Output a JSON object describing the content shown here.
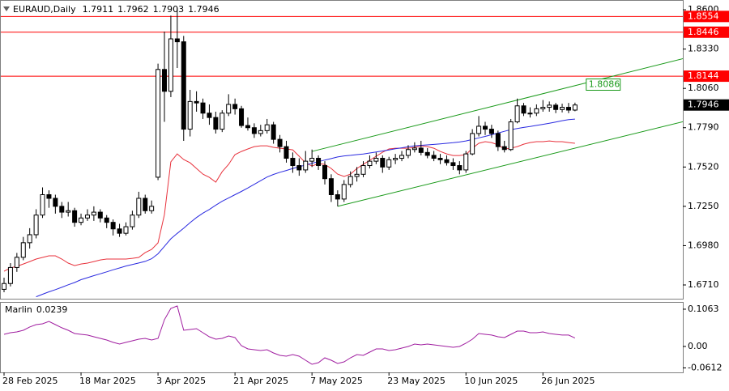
{
  "chart_data": {
    "type": "candlestick",
    "title": "EURAUD,Daily",
    "up_color": "#ffffff",
    "down_color": "#000000",
    "categories": [
      "28 Feb 2025",
      null,
      null,
      null,
      null,
      null,
      null,
      null,
      null,
      null,
      null,
      null,
      "18 Mar 2025",
      null,
      null,
      null,
      null,
      null,
      null,
      null,
      null,
      null,
      null,
      null,
      "3 Apr 2025",
      null,
      null,
      null,
      null,
      null,
      null,
      null,
      null,
      null,
      null,
      null,
      "21 Apr 2025",
      null,
      null,
      null,
      null,
      null,
      null,
      null,
      null,
      null,
      null,
      null,
      "7 May 2025",
      null,
      null,
      null,
      null,
      null,
      null,
      null,
      null,
      null,
      null,
      null,
      "23 May 2025",
      null,
      null,
      null,
      null,
      null,
      null,
      null,
      null,
      null,
      null,
      null,
      "10 Jun 2025",
      null,
      null,
      null,
      null,
      null,
      null,
      null,
      null,
      null,
      null,
      null,
      "26 Jun 2025",
      null,
      null,
      null,
      null,
      null
    ],
    "open": [
      1.668,
      1.672,
      1.683,
      1.69,
      1.7,
      1.7055,
      1.719,
      1.733,
      1.7305,
      1.725,
      1.721,
      1.722,
      1.714,
      1.717,
      1.719,
      1.721,
      1.717,
      1.714,
      1.7095,
      1.7065,
      1.711,
      1.719,
      1.7305,
      1.722,
      1.745,
      1.819,
      1.804,
      1.84,
      1.838,
      1.778,
      1.797,
      1.796,
      1.789,
      1.786,
      1.778,
      1.789,
      1.795,
      1.792,
      1.7805,
      1.779,
      1.775,
      1.777,
      1.781,
      1.771,
      1.766,
      1.758,
      1.753,
      1.75,
      1.756,
      1.758,
      1.753,
      1.744,
      1.733,
      1.73,
      1.74,
      1.7455,
      1.747,
      1.753,
      1.756,
      1.758,
      1.752,
      1.757,
      1.758,
      1.76,
      1.764,
      1.765,
      1.762,
      1.76,
      1.758,
      1.757,
      1.755,
      1.753,
      1.75,
      1.761,
      1.775,
      1.78,
      1.778,
      1.775,
      1.766,
      1.764,
      1.783,
      1.794,
      1.789,
      1.789,
      1.792,
      1.793,
      1.7945,
      1.7915,
      1.793,
      1.7911
    ],
    "high": [
      1.676,
      1.686,
      1.693,
      1.704,
      1.71,
      1.723,
      1.738,
      1.736,
      1.733,
      1.728,
      1.728,
      1.724,
      1.72,
      1.723,
      1.725,
      1.723,
      1.719,
      1.716,
      1.713,
      1.714,
      1.722,
      1.735,
      1.733,
      1.729,
      1.823,
      1.845,
      1.856,
      1.861,
      1.842,
      1.805,
      1.804,
      1.799,
      1.795,
      1.79,
      1.791,
      1.802,
      1.799,
      1.794,
      1.786,
      1.782,
      1.781,
      1.785,
      1.783,
      1.774,
      1.77,
      1.762,
      1.758,
      1.763,
      1.764,
      1.76,
      1.756,
      1.747,
      1.736,
      1.743,
      1.749,
      1.752,
      1.756,
      1.76,
      1.762,
      1.76,
      1.759,
      1.761,
      1.763,
      1.767,
      1.769,
      1.77,
      1.765,
      1.763,
      1.761,
      1.76,
      1.758,
      1.756,
      1.763,
      1.778,
      1.787,
      1.783,
      1.781,
      1.777,
      1.77,
      1.785,
      1.799,
      1.796,
      1.793,
      1.795,
      1.798,
      1.797,
      1.796,
      1.7955,
      1.796,
      1.7962
    ],
    "low": [
      1.666,
      1.67,
      1.68,
      1.688,
      1.696,
      1.703,
      1.717,
      1.724,
      1.72,
      1.717,
      1.718,
      1.711,
      1.712,
      1.715,
      1.715,
      1.714,
      1.71,
      1.705,
      1.704,
      1.705,
      1.709,
      1.717,
      1.72,
      1.72,
      1.743,
      1.783,
      1.8,
      1.82,
      1.77,
      1.773,
      1.79,
      1.785,
      1.781,
      1.775,
      1.776,
      1.787,
      1.788,
      1.779,
      1.777,
      1.772,
      1.773,
      1.775,
      1.768,
      1.762,
      1.755,
      1.748,
      1.746,
      1.748,
      1.752,
      1.75,
      1.74,
      1.728,
      1.725,
      1.728,
      1.738,
      1.742,
      1.745,
      1.751,
      1.754,
      1.748,
      1.75,
      1.754,
      1.756,
      1.758,
      1.762,
      1.76,
      1.758,
      1.756,
      1.754,
      1.753,
      1.75,
      1.747,
      1.748,
      1.76,
      1.773,
      1.774,
      1.772,
      1.763,
      1.762,
      1.763,
      1.782,
      1.787,
      1.786,
      1.787,
      1.79,
      1.79,
      1.789,
      1.7895,
      1.789,
      1.7903
    ],
    "close": [
      1.672,
      1.683,
      1.69,
      1.7,
      1.7055,
      1.719,
      1.733,
      1.7305,
      1.725,
      1.721,
      1.722,
      1.714,
      1.717,
      1.719,
      1.721,
      1.717,
      1.714,
      1.7095,
      1.7065,
      1.711,
      1.719,
      1.7305,
      1.722,
      1.725,
      1.819,
      1.804,
      1.84,
      1.838,
      1.778,
      1.797,
      1.796,
      1.789,
      1.786,
      1.778,
      1.789,
      1.795,
      1.792,
      1.7805,
      1.779,
      1.775,
      1.777,
      1.781,
      1.771,
      1.766,
      1.758,
      1.753,
      1.75,
      1.756,
      1.758,
      1.753,
      1.744,
      1.733,
      1.73,
      1.74,
      1.7455,
      1.747,
      1.753,
      1.756,
      1.758,
      1.752,
      1.757,
      1.758,
      1.76,
      1.764,
      1.765,
      1.762,
      1.76,
      1.758,
      1.757,
      1.755,
      1.753,
      1.75,
      1.761,
      1.775,
      1.78,
      1.778,
      1.775,
      1.766,
      1.764,
      1.783,
      1.794,
      1.789,
      1.789,
      1.792,
      1.793,
      1.7945,
      1.7915,
      1.793,
      1.7911,
      1.7946
    ],
    "series": [
      {
        "color": "#e8323c",
        "values": [
          1.6804,
          1.6827,
          1.6838,
          1.6854,
          1.6871,
          1.6888,
          1.6899,
          1.691,
          1.691,
          1.6888,
          1.686,
          1.6843,
          1.6854,
          1.686,
          1.6871,
          1.6882,
          1.6888,
          1.6888,
          1.6888,
          1.6888,
          1.6893,
          1.6899,
          1.6932,
          1.6954,
          1.6999,
          1.7193,
          1.7555,
          1.761,
          1.7571,
          1.7549,
          1.751,
          1.7471,
          1.7449,
          1.7416,
          1.7488,
          1.7538,
          1.7605,
          1.7627,
          1.7644,
          1.766,
          1.7666,
          1.7666,
          1.7655,
          1.7649,
          1.7644,
          1.7638,
          1.7594,
          1.7549,
          1.7527,
          1.7544,
          1.7538,
          1.751,
          1.7471,
          1.7455,
          1.7471,
          1.751,
          1.7538,
          1.7566,
          1.7594,
          1.7621,
          1.7644,
          1.7649,
          1.7649,
          1.7649,
          1.7655,
          1.7666,
          1.766,
          1.7649,
          1.7627,
          1.761,
          1.7599,
          1.7599,
          1.7605,
          1.7649,
          1.7683,
          1.7694,
          1.7688,
          1.7672,
          1.7644,
          1.7649,
          1.766,
          1.7677,
          1.7688,
          1.7694,
          1.7694,
          1.7699,
          1.7694,
          1.7694,
          1.7688,
          1.7683
        ]
      },
      {
        "color": "#2a2ae0",
        "values": [
          null,
          null,
          null,
          null,
          null,
          1.6629,
          1.6646,
          1.6663,
          1.6678,
          1.6694,
          1.6711,
          1.6727,
          1.6746,
          1.676,
          1.6774,
          1.6787,
          1.68,
          1.6814,
          1.6827,
          1.684,
          1.685,
          1.6861,
          1.6872,
          1.689,
          1.6924,
          1.6975,
          1.7027,
          1.7064,
          1.71,
          1.7138,
          1.7173,
          1.7203,
          1.7228,
          1.7258,
          1.7285,
          1.7307,
          1.733,
          1.7352,
          1.7376,
          1.7401,
          1.7426,
          1.7451,
          1.7469,
          1.7484,
          1.7496,
          1.751,
          1.7522,
          1.7534,
          1.7546,
          1.7557,
          1.7568,
          1.7578,
          1.7589,
          1.7596,
          1.76,
          1.7605,
          1.7609,
          1.7616,
          1.7623,
          1.763,
          1.7637,
          1.7645,
          1.7652,
          1.7659,
          1.7666,
          1.7669,
          1.7672,
          1.7675,
          1.7679,
          1.7683,
          1.7687,
          1.7692,
          1.7699,
          1.7709,
          1.772,
          1.773,
          1.7742,
          1.7753,
          1.7765,
          1.7777,
          1.7784,
          1.7792,
          1.7798,
          1.7806,
          1.7813,
          1.7821,
          1.7829,
          1.7838,
          1.7846,
          1.7849
        ]
      }
    ],
    "levels": [
      {
        "value": 1.8554,
        "color": "#ff0000"
      },
      {
        "value": 1.8446,
        "color": "#ff0000"
      },
      {
        "value": 1.8144,
        "color": "#ff0000"
      }
    ],
    "trend_lines": [
      {
        "color": "#1a9a1a",
        "points": [
          [
            48,
            1.7627
          ],
          [
            106,
            1.8266
          ]
        ],
        "value_label": 1.8086,
        "label_x": 91
      },
      {
        "color": "#1a9a1a",
        "points": [
          [
            52,
            1.725
          ],
          [
            106,
            1.7833
          ]
        ]
      }
    ],
    "ylim": [
      1.661,
      1.8667
    ],
    "yticks": [
      {
        "value": 1.86,
        "label": "1.8600"
      },
      {
        "value": 1.833,
        "label": "1.8330"
      },
      {
        "value": 1.806,
        "label": "1.8060"
      },
      {
        "value": 1.779,
        "label": "1.7790"
      },
      {
        "value": 1.752,
        "label": "1.7520"
      },
      {
        "value": 1.725,
        "label": "1.7250"
      },
      {
        "value": 1.698,
        "label": "1.6980"
      },
      {
        "value": 1.671,
        "label": "1.6710"
      }
    ],
    "indicator": {
      "name": "Marlin",
      "color": "#a01ea0",
      "values": [
        0.0347,
        0.0393,
        0.0416,
        0.0462,
        0.0555,
        0.0624,
        0.0647,
        0.0716,
        0.0624,
        0.0532,
        0.0462,
        0.037,
        0.0347,
        0.0324,
        0.0277,
        0.0231,
        0.0185,
        0.0116,
        0.0069,
        0.0116,
        0.0162,
        0.0208,
        0.0231,
        0.0185,
        0.0231,
        0.0763,
        0.1086,
        0.1156,
        0.0462,
        0.0485,
        0.0508,
        0.0393,
        0.0277,
        0.0208,
        0.0231,
        0.03,
        0.0254,
        0.0023,
        -0.0069,
        -0.0092,
        -0.0116,
        -0.0092,
        -0.0185,
        -0.0254,
        -0.0277,
        -0.0231,
        -0.0277,
        -0.0393,
        -0.0508,
        -0.0462,
        -0.0324,
        -0.0393,
        -0.0485,
        -0.0439,
        -0.0324,
        -0.0231,
        -0.0254,
        -0.0162,
        -0.0069,
        -0.0069,
        -0.0116,
        -0.0092,
        -0.0046,
        0.0,
        0.0069,
        0.0046,
        0.0069,
        0.0046,
        0.0023,
        0.0,
        -0.0023,
        0.0,
        0.0092,
        0.0208,
        0.037,
        0.0347,
        0.0324,
        0.0277,
        0.0254,
        0.0347,
        0.0439,
        0.0439,
        0.0393,
        0.0393,
        0.0416,
        0.037,
        0.0347,
        0.0324,
        0.0324,
        0.0239
      ],
      "ylim": [
        -0.074,
        0.127
      ],
      "yticks": [
        0.1063,
        {
          "value": 0,
          "label": "0.00"
        },
        -0.0612
      ]
    }
  }
}
